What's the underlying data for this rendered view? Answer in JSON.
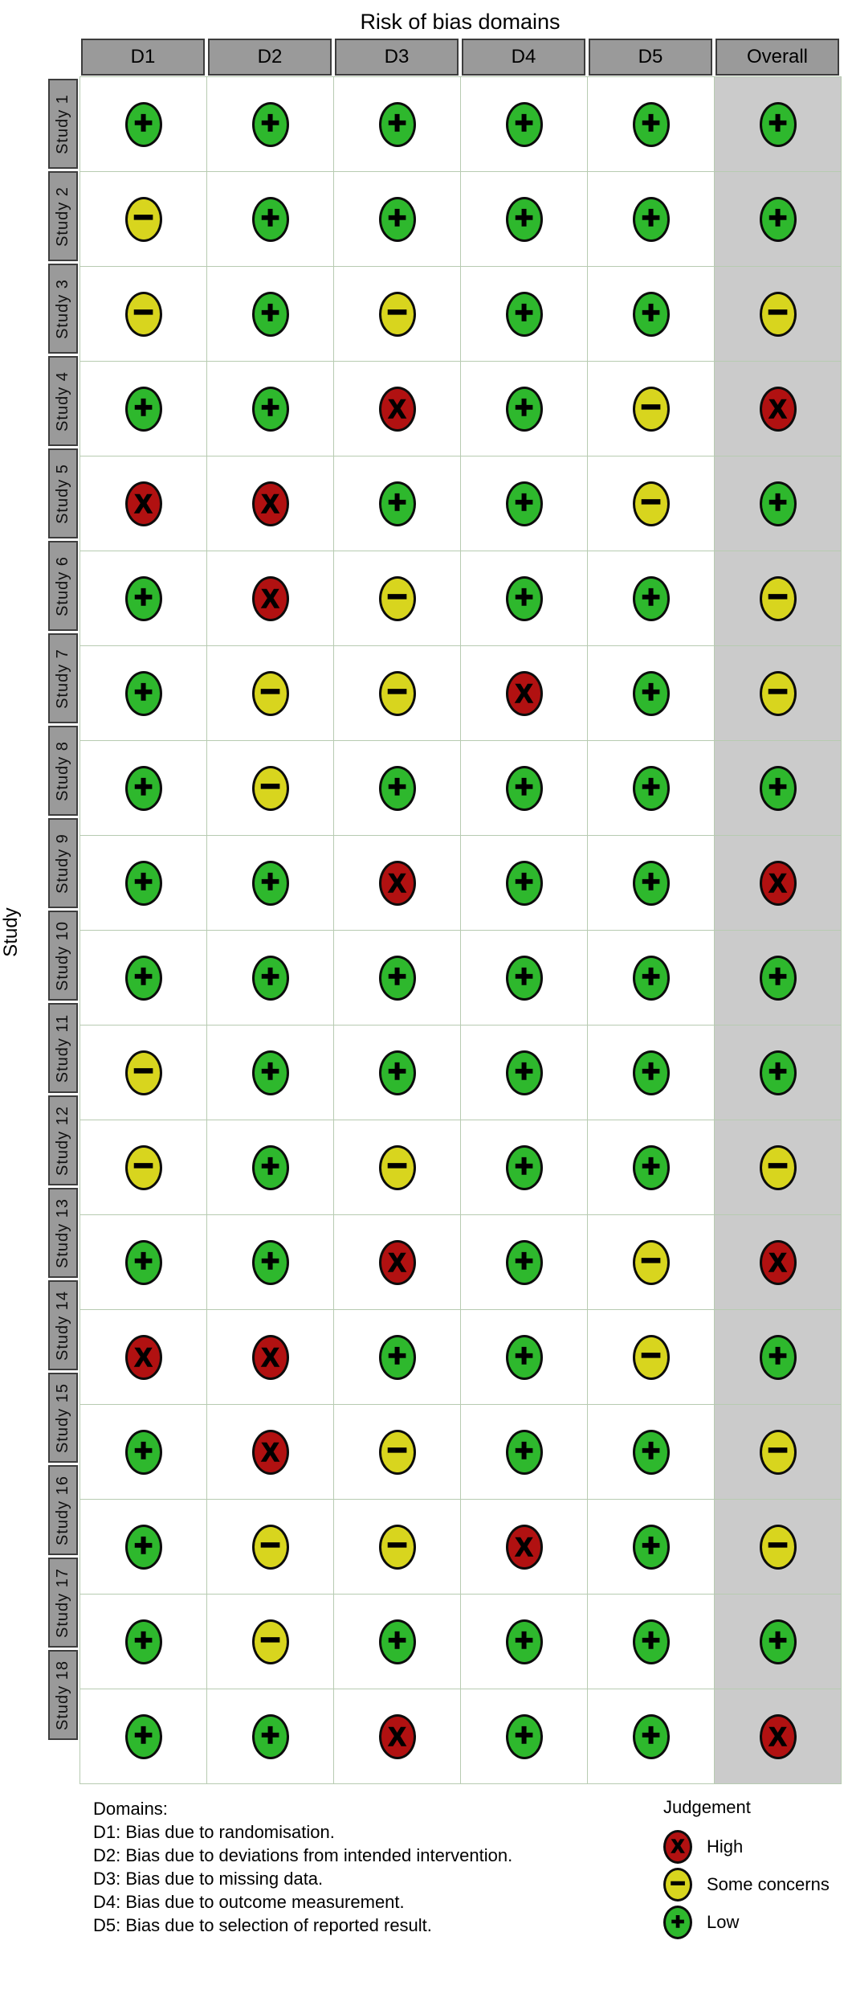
{
  "title": "Risk of bias domains",
  "y_axis_label": "Study",
  "table": {
    "columns": [
      "D1",
      "D2",
      "D3",
      "D4",
      "D5",
      "Overall"
    ],
    "studies": [
      {
        "label": "Study 1",
        "ratings": [
          "L",
          "L",
          "L",
          "L",
          "L",
          "L"
        ]
      },
      {
        "label": "Study 2",
        "ratings": [
          "C",
          "L",
          "L",
          "L",
          "L",
          "L"
        ]
      },
      {
        "label": "Study 3",
        "ratings": [
          "C",
          "L",
          "C",
          "L",
          "L",
          "C"
        ]
      },
      {
        "label": "Study 4",
        "ratings": [
          "L",
          "L",
          "H",
          "L",
          "C",
          "H"
        ]
      },
      {
        "label": "Study 5",
        "ratings": [
          "H",
          "H",
          "L",
          "L",
          "C",
          "L"
        ]
      },
      {
        "label": "Study 6",
        "ratings": [
          "L",
          "H",
          "C",
          "L",
          "L",
          "C"
        ]
      },
      {
        "label": "Study 7",
        "ratings": [
          "L",
          "C",
          "C",
          "H",
          "L",
          "C"
        ]
      },
      {
        "label": "Study 8",
        "ratings": [
          "L",
          "C",
          "L",
          "L",
          "L",
          "L"
        ]
      },
      {
        "label": "Study 9",
        "ratings": [
          "L",
          "L",
          "H",
          "L",
          "L",
          "H"
        ]
      },
      {
        "label": "Study 10",
        "ratings": [
          "L",
          "L",
          "L",
          "L",
          "L",
          "L"
        ]
      },
      {
        "label": "Study 11",
        "ratings": [
          "C",
          "L",
          "L",
          "L",
          "L",
          "L"
        ]
      },
      {
        "label": "Study 12",
        "ratings": [
          "C",
          "L",
          "C",
          "L",
          "L",
          "C"
        ]
      },
      {
        "label": "Study 13",
        "ratings": [
          "L",
          "L",
          "H",
          "L",
          "C",
          "H"
        ]
      },
      {
        "label": "Study 14",
        "ratings": [
          "H",
          "H",
          "L",
          "L",
          "C",
          "L"
        ]
      },
      {
        "label": "Study 15",
        "ratings": [
          "L",
          "H",
          "C",
          "L",
          "L",
          "C"
        ]
      },
      {
        "label": "Study 16",
        "ratings": [
          "L",
          "C",
          "C",
          "H",
          "L",
          "C"
        ]
      },
      {
        "label": "Study 17",
        "ratings": [
          "L",
          "C",
          "L",
          "L",
          "L",
          "L"
        ]
      },
      {
        "label": "Study 18",
        "ratings": [
          "L",
          "L",
          "H",
          "L",
          "L",
          "H"
        ]
      }
    ]
  },
  "judgements": {
    "H": {
      "name": "high",
      "label": "High",
      "symbol": "X",
      "color": "#B11111"
    },
    "C": {
      "name": "some-concerns",
      "label": "Some concerns",
      "symbol": "−",
      "color": "#D8D51E"
    },
    "L": {
      "name": "low",
      "label": "Low",
      "symbol": "+",
      "color": "#2EB82D"
    }
  },
  "legend": {
    "title": "Judgement",
    "order": [
      "H",
      "C",
      "L"
    ]
  },
  "footer": {
    "domains_title": "Domains:",
    "domains": [
      "D1: Bias due to randomisation.",
      "D2: Bias due to deviations from intended intervention.",
      "D3: Bias due to missing data.",
      "D4: Bias due to outcome measurement.",
      "D5: Bias due to selection of reported result."
    ]
  },
  "colors": {
    "header_bg": "#9a9a9a",
    "header_border": "#3d3d3d",
    "overall_column_bg": "#cbcbcb",
    "cell_border": "#b7cbb1",
    "circle_border": "#0c0c0c",
    "high": "#B11111",
    "some_concerns": "#D8D51E",
    "low": "#2EB82D"
  },
  "chart_data": {
    "type": "heatmap",
    "title": "Risk of bias domains",
    "xlabel": "Risk of bias domains",
    "ylabel": "Study",
    "x_categories": [
      "D1",
      "D2",
      "D3",
      "D4",
      "D5",
      "Overall"
    ],
    "y_categories": [
      "Study 1",
      "Study 2",
      "Study 3",
      "Study 4",
      "Study 5",
      "Study 6",
      "Study 7",
      "Study 8",
      "Study 9",
      "Study 10",
      "Study 11",
      "Study 12",
      "Study 13",
      "Study 14",
      "Study 15",
      "Study 16",
      "Study 17",
      "Study 18"
    ],
    "value_domain": [
      "Low",
      "Some concerns",
      "High"
    ],
    "values": [
      [
        "Low",
        "Low",
        "Low",
        "Low",
        "Low",
        "Low"
      ],
      [
        "Some concerns",
        "Low",
        "Low",
        "Low",
        "Low",
        "Low"
      ],
      [
        "Some concerns",
        "Low",
        "Some concerns",
        "Low",
        "Low",
        "Some concerns"
      ],
      [
        "Low",
        "Low",
        "High",
        "Low",
        "Some concerns",
        "High"
      ],
      [
        "High",
        "High",
        "Low",
        "Low",
        "Some concerns",
        "Low"
      ],
      [
        "Low",
        "High",
        "Some concerns",
        "Low",
        "Low",
        "Some concerns"
      ],
      [
        "Low",
        "Some concerns",
        "Some concerns",
        "High",
        "Low",
        "Some concerns"
      ],
      [
        "Low",
        "Some concerns",
        "Low",
        "Low",
        "Low",
        "Low"
      ],
      [
        "Low",
        "Low",
        "High",
        "Low",
        "Low",
        "High"
      ],
      [
        "Low",
        "Low",
        "Low",
        "Low",
        "Low",
        "Low"
      ],
      [
        "Some concerns",
        "Low",
        "Low",
        "Low",
        "Low",
        "Low"
      ],
      [
        "Some concerns",
        "Low",
        "Some concerns",
        "Low",
        "Low",
        "Some concerns"
      ],
      [
        "Low",
        "Low",
        "High",
        "Low",
        "Some concerns",
        "High"
      ],
      [
        "High",
        "High",
        "Low",
        "Low",
        "Some concerns",
        "Low"
      ],
      [
        "Low",
        "High",
        "Some concerns",
        "Low",
        "Low",
        "Some concerns"
      ],
      [
        "Low",
        "Some concerns",
        "Some concerns",
        "High",
        "Low",
        "Some concerns"
      ],
      [
        "Low",
        "Some concerns",
        "Low",
        "Low",
        "Low",
        "Low"
      ],
      [
        "Low",
        "Low",
        "High",
        "Low",
        "Low",
        "High"
      ]
    ],
    "legend": [
      {
        "label": "High",
        "symbol": "X",
        "color": "#B11111"
      },
      {
        "label": "Some concerns",
        "symbol": "−",
        "color": "#D8D51E"
      },
      {
        "label": "Low",
        "symbol": "+",
        "color": "#2EB82D"
      }
    ],
    "legend_position": "bottom-right",
    "grid": true
  }
}
